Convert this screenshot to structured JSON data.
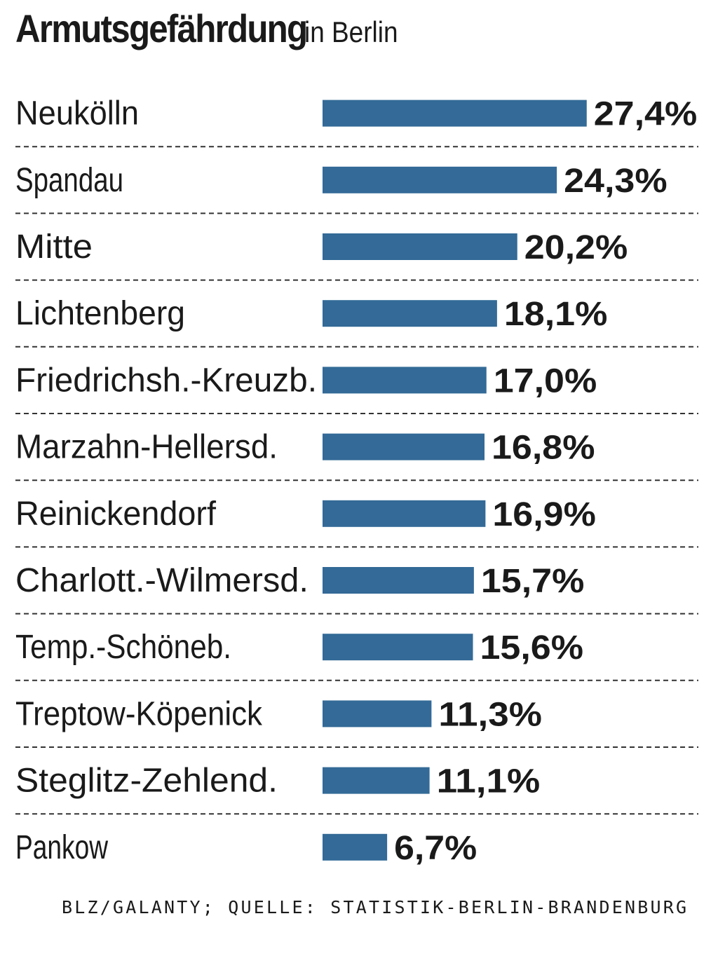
{
  "chart_data": {
    "type": "bar",
    "orientation": "horizontal",
    "title": "Armutsgefährdung",
    "subtitle": "in Berlin",
    "categories": [
      "Neukölln",
      "Spandau",
      "Mitte",
      "Lichtenberg",
      "Friedrichsh.-Kreuzb.",
      "Marzahn-Hellersd.",
      "Reinickendorf",
      "Charlott.-Wilmersd.",
      "Temp.-Schöneb.",
      "Treptow-Köpenick",
      "Steglitz-Zehlend.",
      "Pankow"
    ],
    "values": [
      27.4,
      24.3,
      20.2,
      18.1,
      17.0,
      16.8,
      16.9,
      15.7,
      15.6,
      11.3,
      11.1,
      6.7
    ],
    "value_labels": [
      "27,4%",
      "24,3%",
      "20,2%",
      "18,1%",
      "17,0%",
      "16,8%",
      "16,9%",
      "15,7%",
      "15,6%",
      "11,3%",
      "11,1%",
      "6,7%"
    ],
    "bar_color": "#336a97",
    "grid": false,
    "legend": "none",
    "source": "BLZ/GALANTY; QUELLE: STATISTIK-BERLIN-BRANDENBURG"
  }
}
